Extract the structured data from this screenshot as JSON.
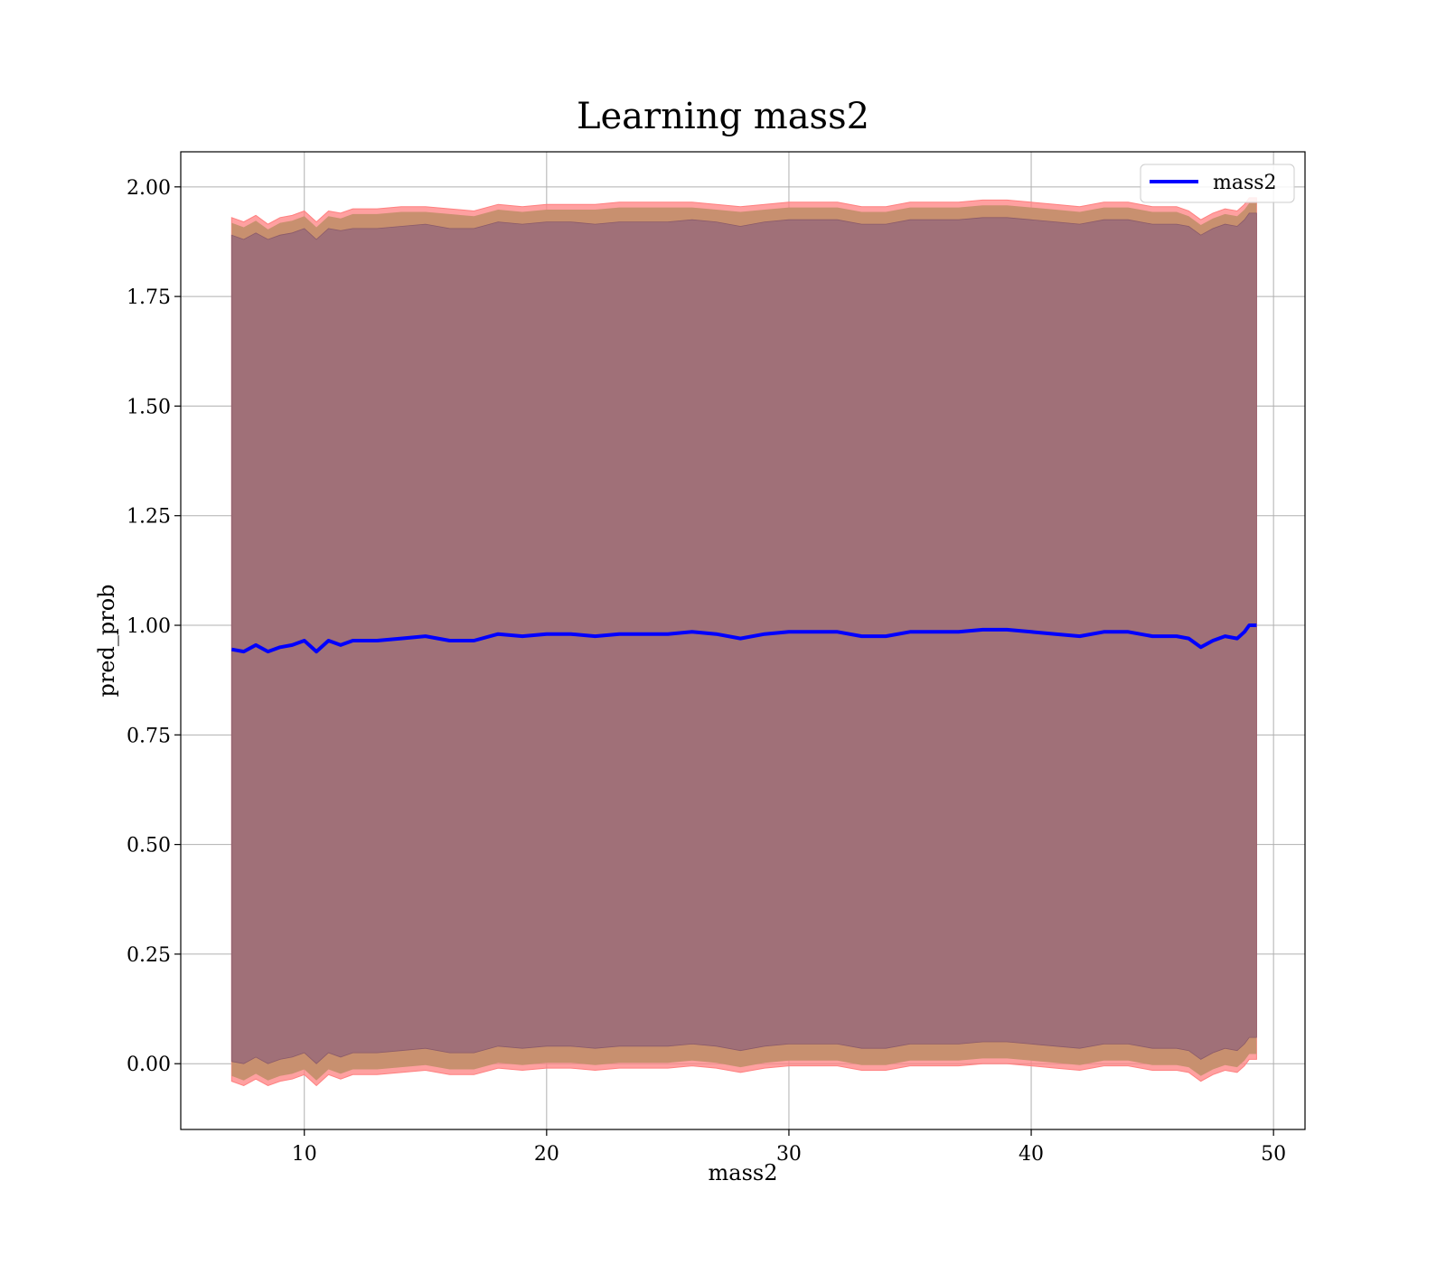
{
  "chart_data": {
    "type": "line",
    "title": "Learning mass2",
    "xlabel": "mass2",
    "ylabel": "pred_prob",
    "xlim": [
      4.9,
      51.3
    ],
    "ylim": [
      -0.15,
      2.08
    ],
    "xticks": [
      10,
      20,
      30,
      40,
      50
    ],
    "yticks": [
      0.0,
      0.25,
      0.5,
      0.75,
      1.0,
      1.25,
      1.5,
      1.75,
      2.0
    ],
    "ytick_labels": [
      "0.00",
      "0.25",
      "0.50",
      "0.75",
      "1.00",
      "1.25",
      "1.50",
      "1.75",
      "2.00"
    ],
    "grid": true,
    "legend": {
      "position": "top-right",
      "entries": [
        "mass2"
      ]
    },
    "colors": {
      "line": "#0000ff",
      "outer_band": "#ff8080",
      "middle_band": "#c8906f",
      "inner_band": "#a07078",
      "grid": "#b0b0b0"
    },
    "series": [
      {
        "name": "mass2",
        "x": [
          7.0,
          7.5,
          8.0,
          8.5,
          9.0,
          9.5,
          10.0,
          10.5,
          11.0,
          11.5,
          12.0,
          13.0,
          14.0,
          15.0,
          16.0,
          17.0,
          18.0,
          19.0,
          20.0,
          21.0,
          22.0,
          23.0,
          24.0,
          25.0,
          26.0,
          27.0,
          28.0,
          29.0,
          30.0,
          31.0,
          32.0,
          33.0,
          34.0,
          35.0,
          36.0,
          37.0,
          38.0,
          39.0,
          40.0,
          41.0,
          42.0,
          43.0,
          44.0,
          45.0,
          46.0,
          46.5,
          47.0,
          47.5,
          48.0,
          48.5,
          48.8,
          49.0,
          49.3
        ],
        "y": [
          0.945,
          0.94,
          0.955,
          0.94,
          0.95,
          0.955,
          0.965,
          0.94,
          0.965,
          0.955,
          0.965,
          0.965,
          0.97,
          0.975,
          0.965,
          0.965,
          0.98,
          0.975,
          0.98,
          0.98,
          0.975,
          0.98,
          0.98,
          0.98,
          0.985,
          0.98,
          0.97,
          0.98,
          0.985,
          0.985,
          0.985,
          0.975,
          0.975,
          0.985,
          0.985,
          0.985,
          0.99,
          0.99,
          0.985,
          0.98,
          0.975,
          0.985,
          0.985,
          0.975,
          0.975,
          0.97,
          0.95,
          0.965,
          0.975,
          0.97,
          0.985,
          1.0,
          1.0
        ],
        "band_outer_upper": [
          1.93,
          1.92,
          1.935,
          1.915,
          1.93,
          1.935,
          1.945,
          1.92,
          1.945,
          1.94,
          1.95,
          1.95,
          1.955,
          1.955,
          1.95,
          1.945,
          1.96,
          1.955,
          1.96,
          1.96,
          1.96,
          1.965,
          1.965,
          1.965,
          1.965,
          1.96,
          1.955,
          1.96,
          1.965,
          1.965,
          1.965,
          1.955,
          1.955,
          1.965,
          1.965,
          1.965,
          1.97,
          1.97,
          1.965,
          1.96,
          1.955,
          1.965,
          1.965,
          1.955,
          1.955,
          1.945,
          1.925,
          1.94,
          1.95,
          1.945,
          1.96,
          1.975,
          1.975
        ],
        "band_inner_upper": [
          1.89,
          1.88,
          1.895,
          1.88,
          1.89,
          1.895,
          1.905,
          1.88,
          1.905,
          1.9,
          1.905,
          1.905,
          1.91,
          1.915,
          1.905,
          1.905,
          1.92,
          1.915,
          1.92,
          1.92,
          1.915,
          1.92,
          1.92,
          1.92,
          1.925,
          1.92,
          1.91,
          1.92,
          1.925,
          1.925,
          1.925,
          1.915,
          1.915,
          1.925,
          1.925,
          1.925,
          1.93,
          1.93,
          1.925,
          1.92,
          1.915,
          1.925,
          1.925,
          1.915,
          1.915,
          1.91,
          1.89,
          1.905,
          1.915,
          1.91,
          1.925,
          1.94,
          1.94
        ],
        "band_inner_lower": [
          0.005,
          0.0,
          0.015,
          0.0,
          0.01,
          0.015,
          0.025,
          0.0,
          0.025,
          0.015,
          0.025,
          0.025,
          0.03,
          0.035,
          0.025,
          0.025,
          0.04,
          0.035,
          0.04,
          0.04,
          0.035,
          0.04,
          0.04,
          0.04,
          0.045,
          0.04,
          0.03,
          0.04,
          0.045,
          0.045,
          0.045,
          0.035,
          0.035,
          0.045,
          0.045,
          0.045,
          0.05,
          0.05,
          0.045,
          0.04,
          0.035,
          0.045,
          0.045,
          0.035,
          0.035,
          0.03,
          0.01,
          0.025,
          0.035,
          0.03,
          0.045,
          0.06,
          0.06
        ],
        "band_outer_lower": [
          -0.04,
          -0.05,
          -0.035,
          -0.05,
          -0.04,
          -0.035,
          -0.025,
          -0.05,
          -0.025,
          -0.035,
          -0.025,
          -0.025,
          -0.02,
          -0.015,
          -0.025,
          -0.025,
          -0.01,
          -0.015,
          -0.01,
          -0.01,
          -0.015,
          -0.01,
          -0.01,
          -0.01,
          -0.005,
          -0.01,
          -0.02,
          -0.01,
          -0.005,
          -0.005,
          -0.005,
          -0.015,
          -0.015,
          -0.005,
          -0.005,
          -0.005,
          0.0,
          0.0,
          -0.005,
          -0.01,
          -0.015,
          -0.005,
          -0.005,
          -0.015,
          -0.015,
          -0.02,
          -0.04,
          -0.025,
          -0.015,
          -0.02,
          -0.005,
          0.01,
          0.01
        ]
      }
    ]
  }
}
